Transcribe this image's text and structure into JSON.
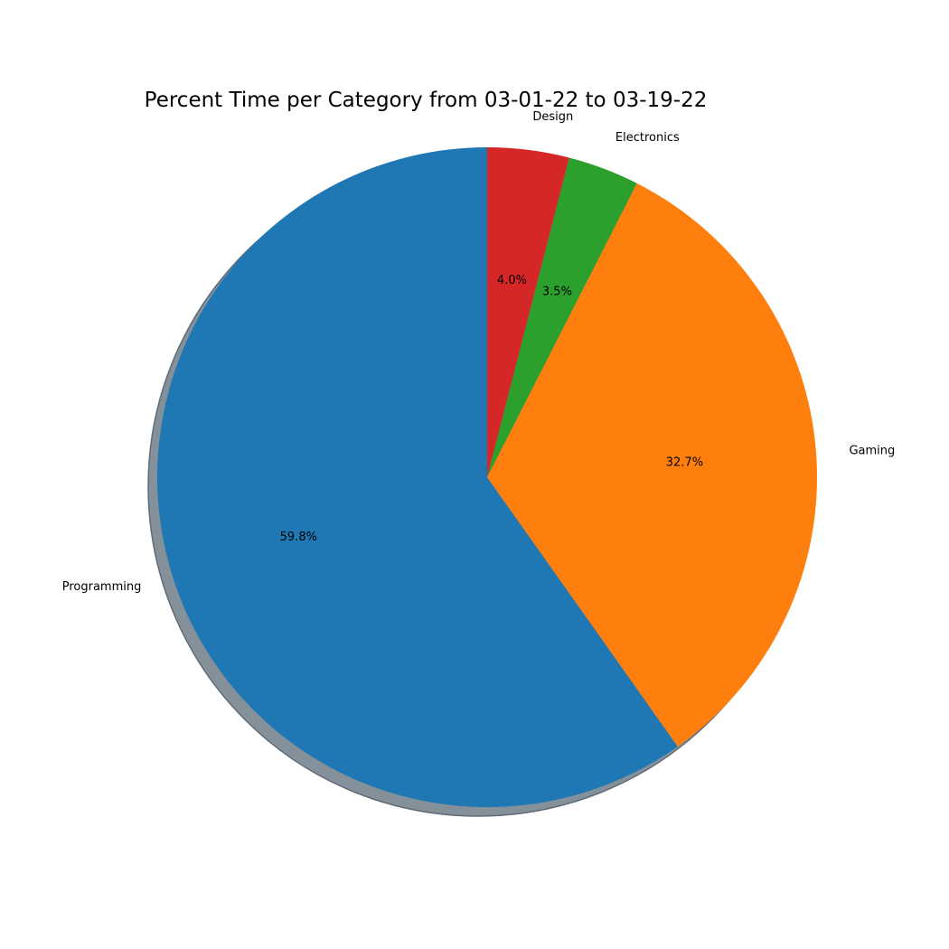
{
  "chart_data": {
    "type": "pie",
    "title": "Percent Time per Category from 03-01-22 to 03-19-22",
    "categories": [
      "Programming",
      "Gaming",
      "Electronics",
      "Design"
    ],
    "values": [
      59.8,
      32.7,
      3.5,
      4.0
    ],
    "percent_labels": [
      "59.8%",
      "32.7%",
      "3.5%",
      "4.0%"
    ],
    "colors": [
      "#1f77b4",
      "#ff7f0e",
      "#2ca02c",
      "#d62728"
    ],
    "start_angle_deg": 90,
    "direction": "counterclockwise",
    "shadow": true,
    "legend": "none"
  }
}
